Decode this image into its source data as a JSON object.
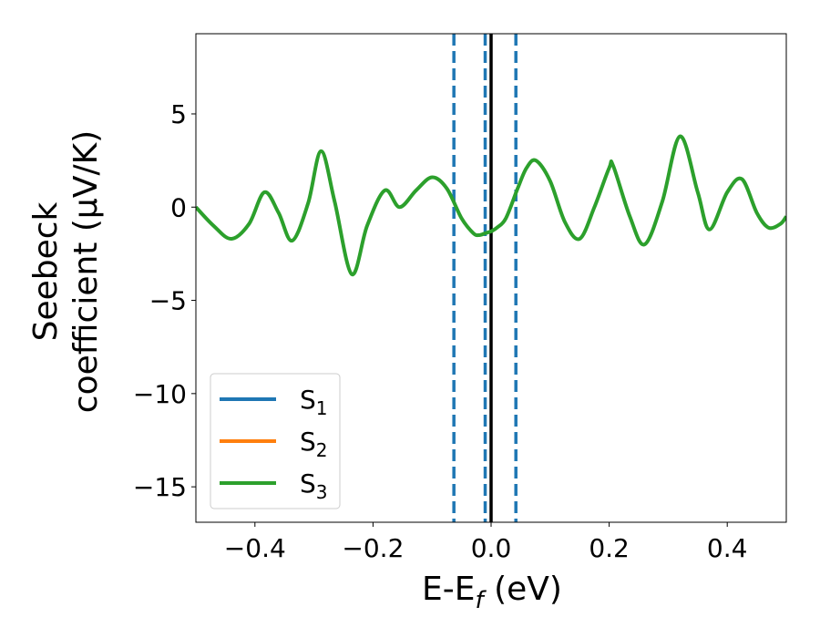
{
  "chart_data": {
    "type": "line",
    "xlabel": {
      "base": "E-E",
      "sub": "f",
      "suffix": " (eV)"
    },
    "ylabel": {
      "line1": "Seebeck",
      "line2": "coefficient  (μV/K)"
    },
    "xlim": [
      -0.5,
      0.5
    ],
    "ylim": [
      -16.9,
      9.3
    ],
    "x_ticks": [
      -0.4,
      -0.2,
      0.0,
      0.2,
      0.4
    ],
    "x_tick_labels": [
      "−0.4",
      "−0.2",
      "0.0",
      "0.2",
      "0.4"
    ],
    "y_ticks": [
      5,
      0,
      -5,
      -10,
      -15
    ],
    "y_tick_labels": [
      "5",
      "0",
      "−5",
      "−10",
      "−15"
    ],
    "grid": false,
    "legend_position": "lower-left",
    "series": [
      {
        "name": "S",
        "sub": "1",
        "color": "#1f77b4"
      },
      {
        "name": "S",
        "sub": "2",
        "color": "#ff7f0e"
      },
      {
        "name": "S",
        "sub": "3",
        "color": "#2ca02c",
        "x": [
          -0.5,
          -0.47,
          -0.44,
          -0.41,
          -0.384,
          -0.36,
          -0.337,
          -0.31,
          -0.288,
          -0.265,
          -0.236,
          -0.21,
          -0.18,
          -0.155,
          -0.127,
          -0.1,
          -0.075,
          -0.05,
          -0.03,
          -0.02,
          -0.01,
          0.0,
          0.01,
          0.025,
          0.045,
          0.06,
          0.076,
          0.1,
          0.125,
          0.15,
          0.175,
          0.2,
          0.207,
          0.235,
          0.26,
          0.29,
          0.32,
          0.35,
          0.37,
          0.4,
          0.425,
          0.45,
          0.47,
          0.49,
          0.5
        ],
        "values": [
          0.0,
          -1.0,
          -1.7,
          -0.9,
          0.8,
          -0.3,
          -1.8,
          0.2,
          3.0,
          0.3,
          -3.6,
          -1.0,
          0.9,
          0.0,
          0.9,
          1.6,
          1.0,
          -0.6,
          -1.4,
          -1.5,
          -1.4,
          -1.3,
          -1.1,
          -0.6,
          1.0,
          2.1,
          2.5,
          1.4,
          -0.8,
          -1.7,
          0.0,
          2.1,
          2.2,
          -0.5,
          -2.0,
          0.3,
          3.8,
          0.8,
          -1.2,
          0.8,
          1.5,
          -0.3,
          -1.1,
          -0.9,
          -0.5
        ]
      }
    ],
    "vlines": [
      {
        "x": 0.0,
        "color": "#000000",
        "style": "solid"
      },
      {
        "x": -0.063,
        "color": "#1f77b4",
        "style": "dashed"
      },
      {
        "x": -0.01,
        "color": "#1f77b4",
        "style": "dashed"
      },
      {
        "x": 0.042,
        "color": "#1f77b4",
        "style": "dashed"
      }
    ]
  }
}
